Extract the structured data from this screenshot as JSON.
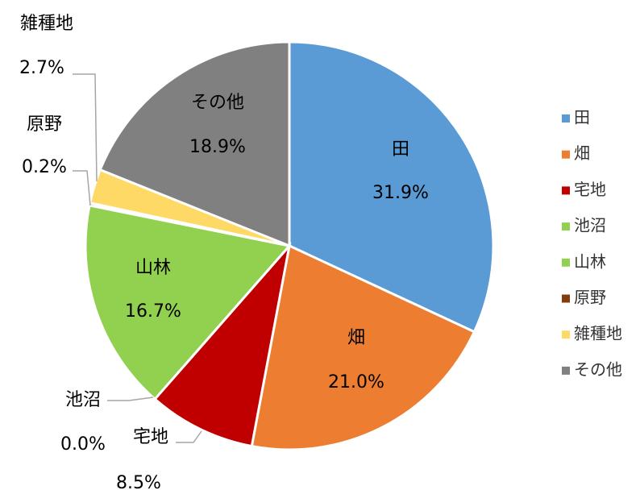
{
  "chart_data": {
    "type": "pie",
    "categories": [
      "田",
      "畑",
      "宅地",
      "池沼",
      "山林",
      "原野",
      "雑種地",
      "その他"
    ],
    "values": [
      31.9,
      21.0,
      8.5,
      0.0,
      16.7,
      0.2,
      2.7,
      18.9
    ],
    "value_labels": [
      "31.9%",
      "21.0%",
      "8.5%",
      "0.0%",
      "16.7%",
      "0.2%",
      "2.7%",
      "18.9%"
    ],
    "colors": [
      "#5b9bd5",
      "#ed7d31",
      "#c00000",
      "#92d050",
      "#92d050",
      "#843c0c",
      "#ffd966",
      "#808080"
    ],
    "legend": "right"
  }
}
